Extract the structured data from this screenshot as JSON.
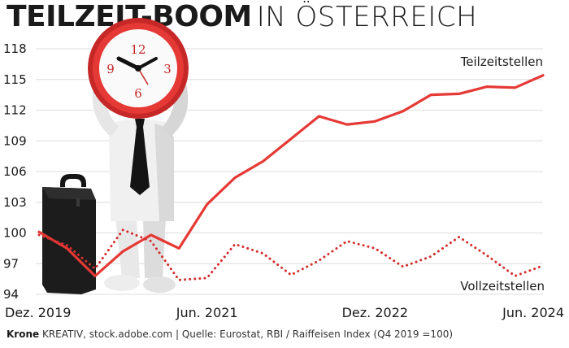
{
  "header": {
    "title_bold": "TEILZEIT-BOOM",
    "title_light": "IN ÖSTERREICH"
  },
  "footer": {
    "brand": "Krone",
    "credit": " KREATIV, stock.adobe.com | Quelle: Eurostat, RBI / Raiffeisen  Index (Q4 2019 =100)"
  },
  "colors": {
    "teilzeit": "#e53935",
    "vollzeit": "#d32f2f",
    "grid": "#e3e3e3",
    "text": "#1a1a1a"
  },
  "illustration": {
    "clock_numerals": [
      "12",
      "3",
      "6",
      "9"
    ]
  },
  "chart_data": {
    "type": "line",
    "x": [
      "Q4 2019",
      "Q1 2020",
      "Q2 2020",
      "Q3 2020",
      "Q4 2020",
      "Q1 2021",
      "Q2 2021",
      "Q3 2021",
      "Q4 2021",
      "Q1 2022",
      "Q2 2022",
      "Q3 2022",
      "Q4 2022",
      "Q1 2023",
      "Q2 2023",
      "Q3 2023",
      "Q4 2023",
      "Q1 2024",
      "Q2 2024"
    ],
    "xticks": [
      {
        "x": "Q4 2019",
        "label": "Dez. 2019"
      },
      {
        "x": "Q2 2021",
        "label": "Jun. 2021"
      },
      {
        "x": "Q4 2022",
        "label": "Dez. 2022"
      },
      {
        "x": "Q2 2024",
        "label": "Jun. 2024"
      }
    ],
    "yticks": [
      94,
      97,
      100,
      103,
      106,
      109,
      112,
      115,
      118
    ],
    "ylim": [
      94,
      118
    ],
    "grid": true,
    "series": [
      {
        "name": "Teilzeitstellen",
        "style": "solid",
        "values": [
          100.1,
          98.5,
          95.8,
          98.2,
          99.8,
          98.5,
          102.8,
          105.4,
          107.0,
          109.2,
          111.4,
          110.6,
          110.9,
          111.9,
          113.5,
          113.6,
          114.3,
          114.2,
          115.4
        ]
      },
      {
        "name": "Vollzeitstellen",
        "style": "dotted",
        "values": [
          99.8,
          98.8,
          96.5,
          100.3,
          99.2,
          95.4,
          95.6,
          98.9,
          98.0,
          95.9,
          97.3,
          99.2,
          98.5,
          96.7,
          97.7,
          99.6,
          97.8,
          95.8,
          96.8
        ]
      }
    ]
  }
}
